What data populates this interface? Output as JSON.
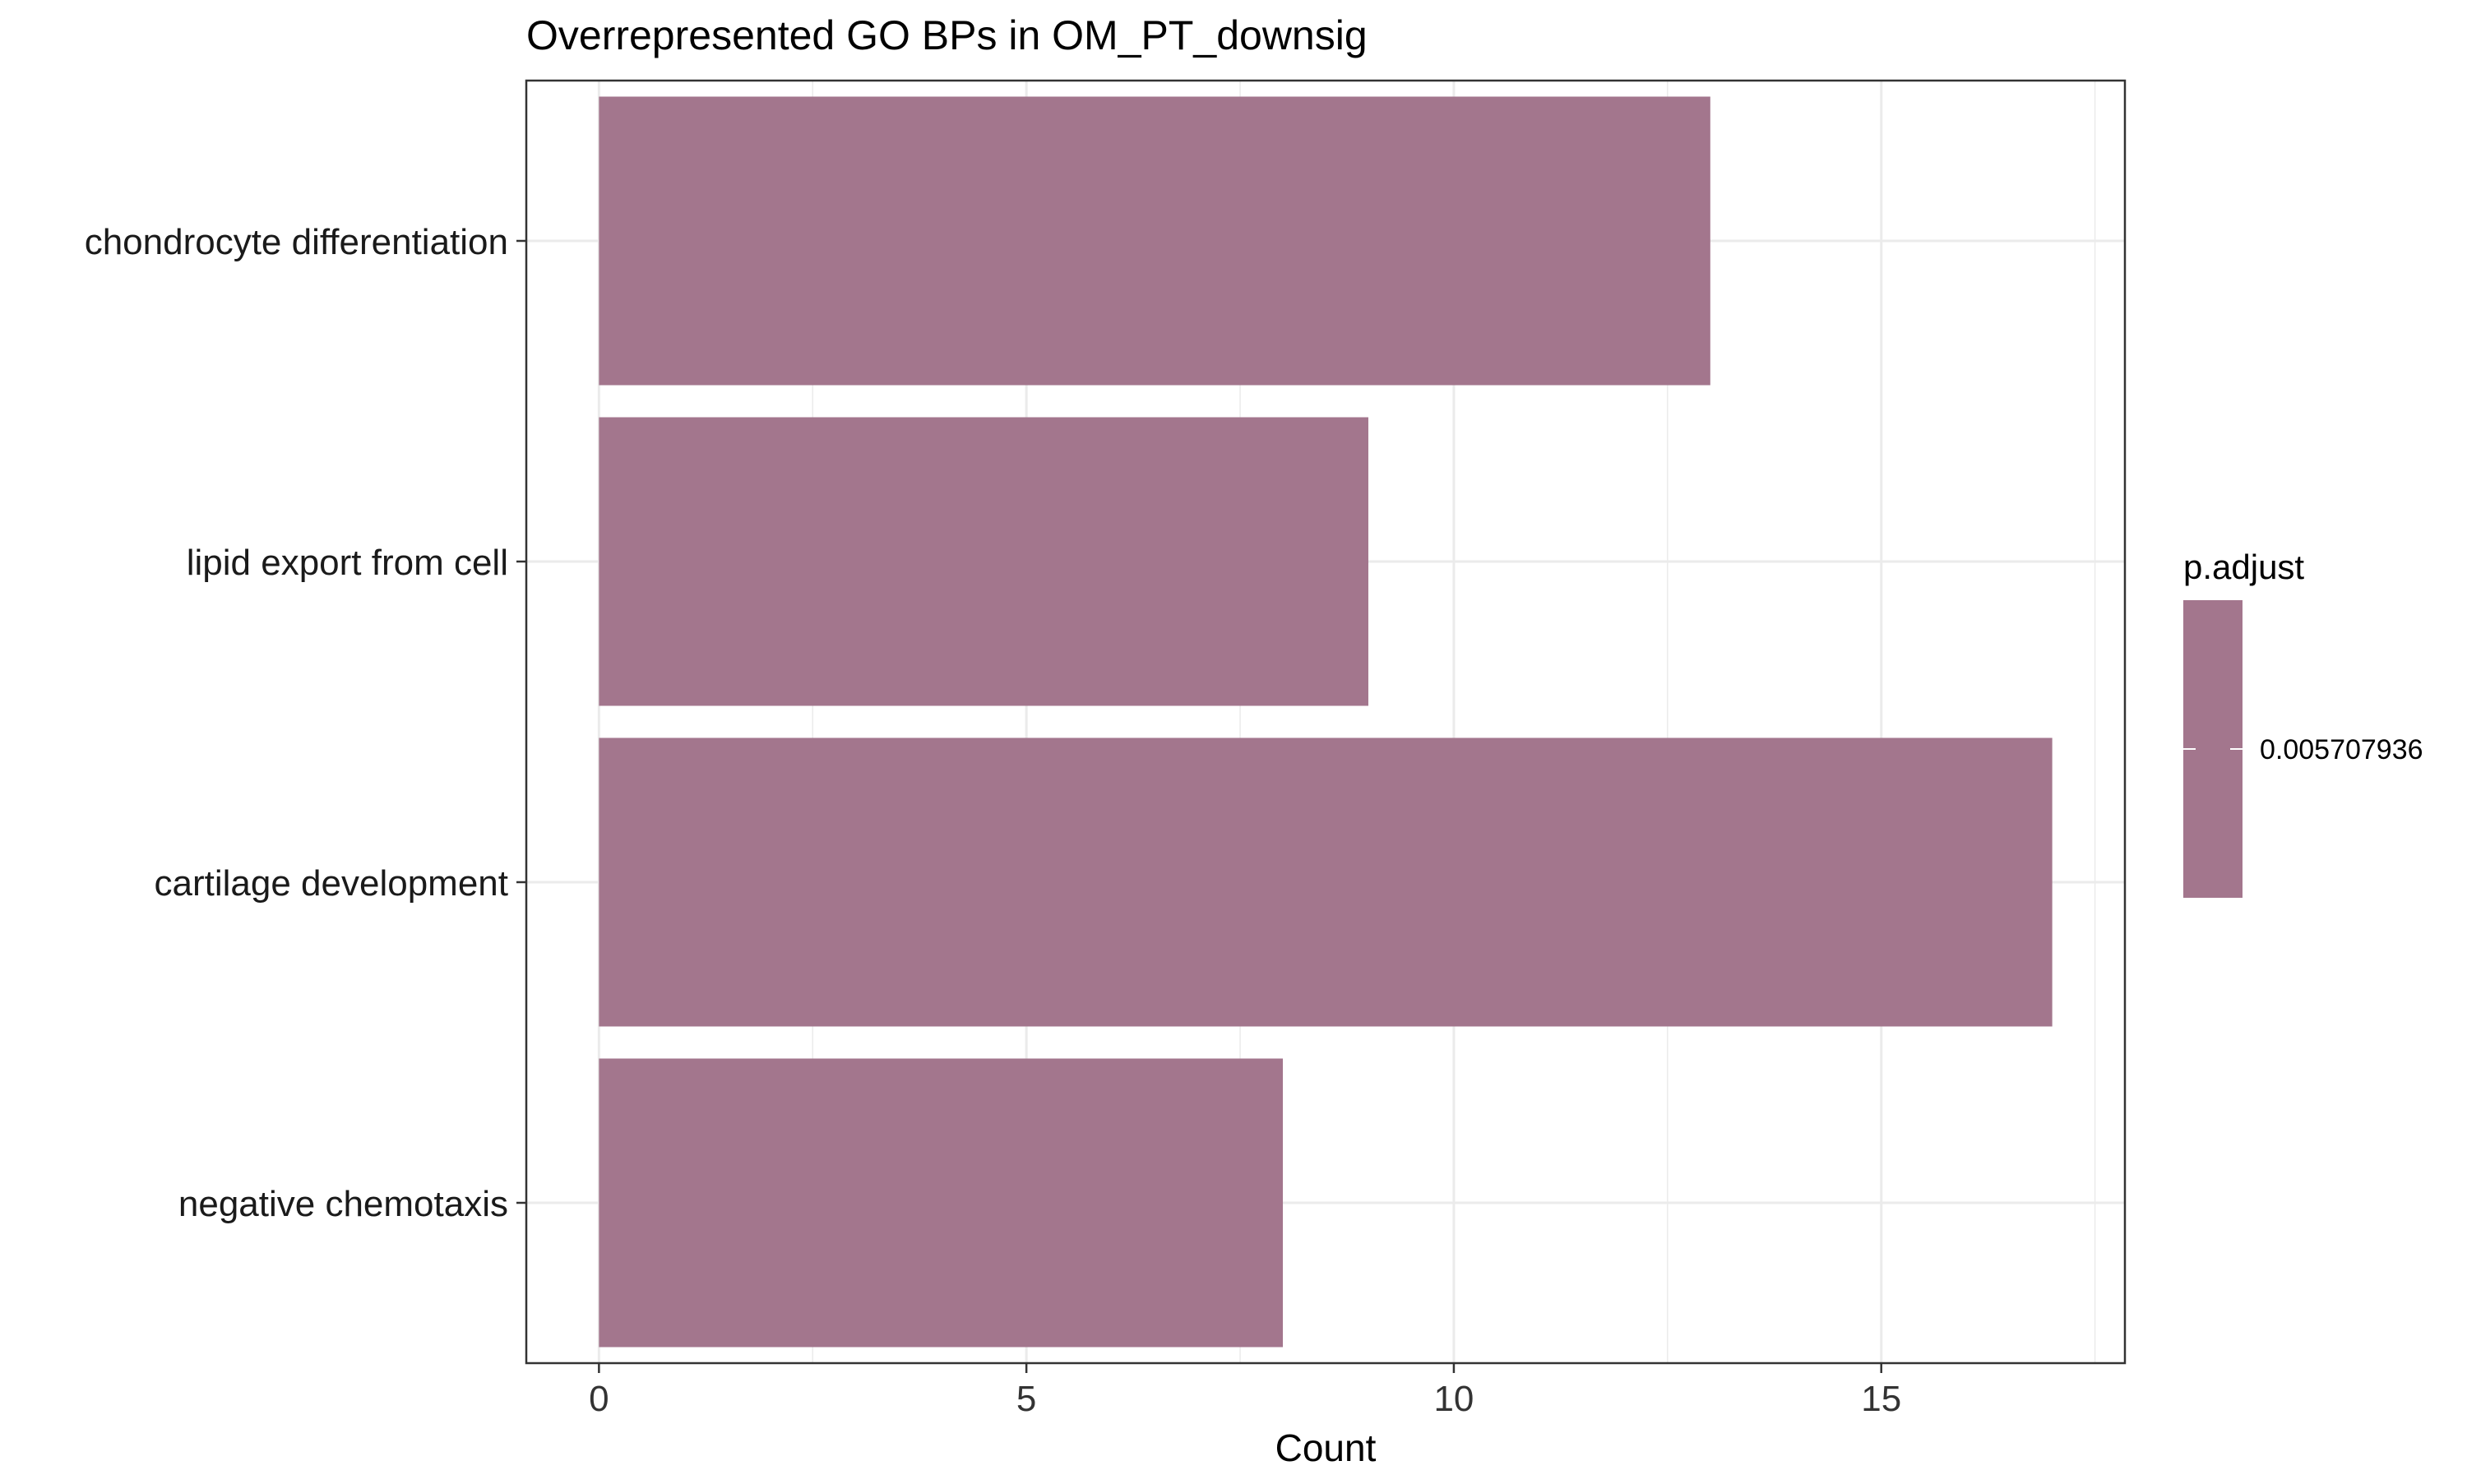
{
  "chart_data": {
    "type": "bar",
    "orientation": "horizontal",
    "title": "Overrepresented GO BPs in OM_PT_downsig",
    "xlabel": "Count",
    "ylabel": "",
    "categories": [
      "chondrocyte differentiation",
      "lipid export from cell",
      "cartilage development",
      "negative chemotaxis"
    ],
    "values": [
      13,
      9,
      17,
      8
    ],
    "xlim": [
      -0.85,
      17.85
    ],
    "xticks": [
      0,
      5,
      10,
      15
    ],
    "grid": true,
    "bar_color": "#a3768d",
    "legend": {
      "title": "p.adjust",
      "placement": "right",
      "value_label": "0.005707936"
    }
  }
}
